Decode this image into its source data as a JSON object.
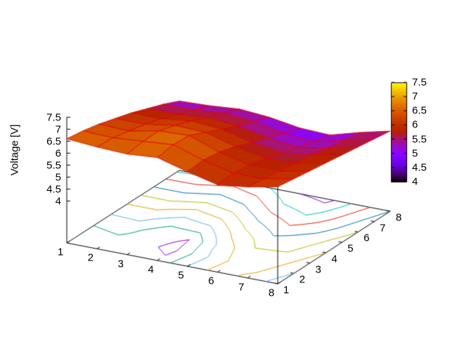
{
  "figure": {
    "background": "#ffffff"
  },
  "chart_data": {
    "type": "3d-surface-with-contour-projection",
    "title": "",
    "xlabel": "",
    "ylabel": "",
    "zlabel": "Voltage [V]",
    "xlim": [
      1,
      8
    ],
    "ylim": [
      1,
      8
    ],
    "zlim": [
      4,
      7.5
    ],
    "x": [
      1,
      2,
      3,
      4,
      5,
      6,
      7,
      8
    ],
    "y": [
      1,
      2,
      3,
      4,
      5,
      6,
      7,
      8
    ],
    "z_grid_rows_front_to_back": [
      [
        6.6,
        6.5,
        6.45,
        6.55,
        6.2,
        5.9,
        6.05,
        6.3
      ],
      [
        6.5,
        6.45,
        6.55,
        6.65,
        6.25,
        5.95,
        5.95,
        6.2
      ],
      [
        6.35,
        6.3,
        6.55,
        6.6,
        6.15,
        5.85,
        5.85,
        6.1
      ],
      [
        6.15,
        6.15,
        6.35,
        6.3,
        5.95,
        5.7,
        5.75,
        6.0
      ],
      [
        5.95,
        5.95,
        6.1,
        6.0,
        5.7,
        5.5,
        5.65,
        5.9
      ],
      [
        5.7,
        5.7,
        5.8,
        5.7,
        5.45,
        5.3,
        5.5,
        5.8
      ],
      [
        5.45,
        5.45,
        5.55,
        5.45,
        5.2,
        5.1,
        5.4,
        5.7
      ],
      [
        5.15,
        5.2,
        5.3,
        5.2,
        5.0,
        4.95,
        5.3,
        5.6
      ]
    ],
    "xticks": [
      "1",
      "2",
      "3",
      "4",
      "5",
      "6",
      "7",
      "8"
    ],
    "yticks": [
      "1",
      "2",
      "3",
      "4",
      "5",
      "6",
      "7",
      "8"
    ],
    "zticks": [
      "4",
      "4.5",
      "5",
      "5.5",
      "6",
      "6.5",
      "7",
      "7.5"
    ],
    "palette": "pm3d traditional black-blue-red-yellow",
    "surface_mesh_color": "#e00000",
    "axis_color": "#000000",
    "contour_levels": [
      5.0,
      5.2,
      5.4,
      5.6,
      5.8,
      6.0,
      6.2,
      6.4,
      6.6
    ],
    "contour_colors": [
      "#9400d3",
      "#009e73",
      "#56b4e9",
      "#e69f00",
      "#b8b800",
      "#0072b2",
      "#e51e10",
      "#00c0c0"
    ],
    "colorbar": {
      "min": 4,
      "max": 7.5,
      "ticks": [
        "4",
        "4.5",
        "5",
        "5.5",
        "6",
        "6.5",
        "7",
        "7.5"
      ]
    },
    "grid": "off",
    "legend": "none"
  }
}
